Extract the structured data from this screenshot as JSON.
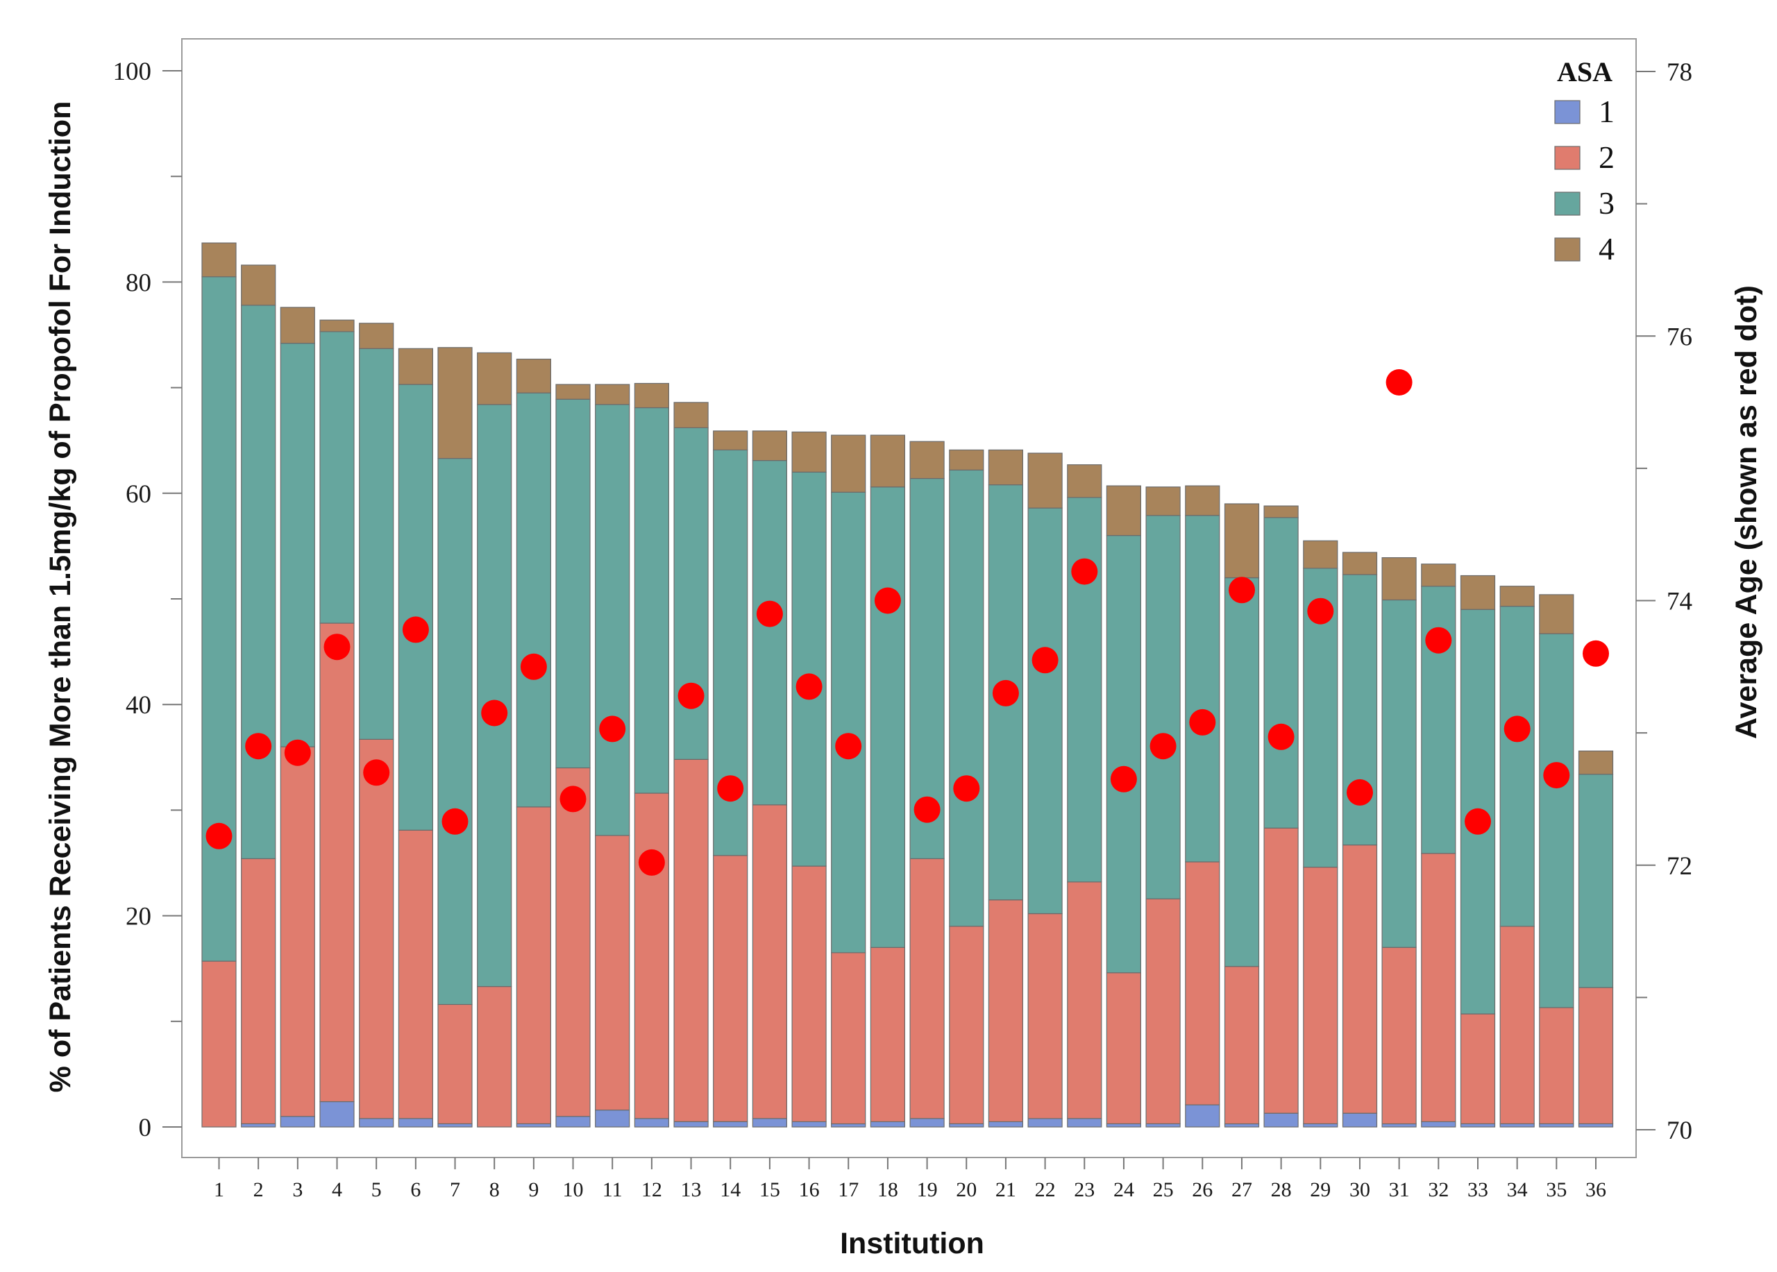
{
  "chart_data": {
    "type": "bar",
    "stacked": true,
    "xlabel": "Institution",
    "ylabel": "% of Patients Receiving More than 1.5mg/kg of Propofol For Induction",
    "y2label": "Average Age (shown as red dot)",
    "ylim": [
      0,
      100
    ],
    "y2lim": [
      70,
      78
    ],
    "yticks": [
      "0",
      "20",
      "40",
      "60",
      "80",
      "100"
    ],
    "y2ticks": [
      "70",
      "72",
      "74",
      "76",
      "78"
    ],
    "grid": false,
    "legend": {
      "title": "ASA",
      "position": "top-right"
    },
    "categories": [
      "1",
      "2",
      "3",
      "4",
      "5",
      "6",
      "7",
      "8",
      "9",
      "10",
      "11",
      "12",
      "13",
      "14",
      "15",
      "16",
      "17",
      "18",
      "19",
      "20",
      "21",
      "22",
      "23",
      "24",
      "25",
      "26",
      "27",
      "28",
      "29",
      "30",
      "31",
      "32",
      "33",
      "34",
      "35",
      "36"
    ],
    "series": [
      {
        "name": "1",
        "color": "#7b93d6",
        "values": [
          0,
          0.3,
          1.0,
          2.4,
          0.8,
          0.8,
          0.3,
          0,
          0.3,
          1.0,
          1.6,
          0.8,
          0.5,
          0.5,
          0.8,
          0.5,
          0.3,
          0.5,
          0.8,
          0.3,
          0.5,
          0.8,
          0.8,
          0.3,
          0.3,
          2.1,
          0.3,
          1.3,
          0.3,
          1.3,
          0.3,
          0.5,
          0.3,
          0.3,
          0.3,
          0.3
        ]
      },
      {
        "name": "2",
        "color": "#e07c6e",
        "values": [
          15.7,
          25.1,
          35.0,
          45.3,
          35.9,
          27.3,
          11.3,
          13.3,
          30.0,
          33.0,
          26.0,
          30.8,
          34.3,
          25.2,
          29.7,
          24.2,
          16.2,
          16.5,
          24.6,
          18.7,
          21.0,
          19.4,
          22.4,
          14.3,
          21.3,
          23.0,
          14.9,
          27.0,
          24.3,
          25.4,
          16.7,
          25.4,
          10.4,
          18.7,
          11.0,
          12.9
        ]
      },
      {
        "name": "3",
        "color": "#66a69e",
        "values": [
          64.8,
          52.4,
          38.2,
          27.6,
          37.0,
          42.2,
          51.7,
          55.1,
          39.2,
          34.9,
          40.8,
          36.5,
          31.4,
          38.4,
          32.6,
          37.3,
          43.6,
          43.6,
          36.0,
          43.2,
          39.3,
          38.4,
          36.4,
          41.4,
          36.3,
          32.8,
          36.8,
          29.4,
          28.3,
          25.6,
          32.9,
          25.3,
          38.3,
          30.3,
          35.4,
          20.2
        ]
      },
      {
        "name": "4",
        "color": "#a8845b",
        "values": [
          3.2,
          3.8,
          3.4,
          1.1,
          2.4,
          3.4,
          10.5,
          4.9,
          3.2,
          1.4,
          1.9,
          2.3,
          2.4,
          1.8,
          2.8,
          3.8,
          5.4,
          4.9,
          3.5,
          1.9,
          3.3,
          5.2,
          3.1,
          4.7,
          2.7,
          2.8,
          7.0,
          1.1,
          2.6,
          2.1,
          4.0,
          2.1,
          3.2,
          1.9,
          3.7,
          2.2
        ]
      }
    ],
    "average_age": {
      "name": "Average Age (shown as red dot)",
      "color": "#ff0000",
      "values": [
        72.22,
        72.9,
        72.85,
        73.65,
        72.7,
        73.78,
        72.33,
        73.15,
        73.5,
        72.5,
        73.03,
        72.02,
        73.28,
        72.58,
        73.9,
        73.35,
        72.9,
        74.0,
        72.42,
        72.58,
        73.3,
        73.55,
        74.22,
        72.65,
        72.9,
        73.08,
        74.08,
        72.97,
        73.92,
        72.55,
        75.65,
        73.7,
        72.33,
        73.03,
        72.68,
        73.6
      ]
    }
  }
}
